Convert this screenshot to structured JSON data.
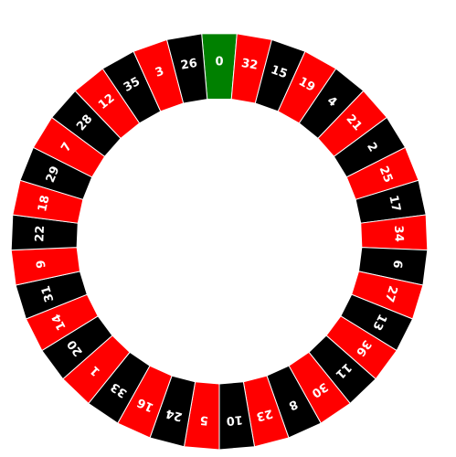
{
  "wheel": {
    "pockets": [
      {
        "number": "0",
        "color": "green"
      },
      {
        "number": "32",
        "color": "red"
      },
      {
        "number": "15",
        "color": "black"
      },
      {
        "number": "19",
        "color": "red"
      },
      {
        "number": "4",
        "color": "black"
      },
      {
        "number": "21",
        "color": "red"
      },
      {
        "number": "2",
        "color": "black"
      },
      {
        "number": "25",
        "color": "red"
      },
      {
        "number": "17",
        "color": "black"
      },
      {
        "number": "34",
        "color": "red"
      },
      {
        "number": "6",
        "color": "black"
      },
      {
        "number": "27",
        "color": "red"
      },
      {
        "number": "13",
        "color": "black"
      },
      {
        "number": "36",
        "color": "red"
      },
      {
        "number": "11",
        "color": "black"
      },
      {
        "number": "30",
        "color": "red"
      },
      {
        "number": "8",
        "color": "black"
      },
      {
        "number": "23",
        "color": "red"
      },
      {
        "number": "10",
        "color": "black"
      },
      {
        "number": "5",
        "color": "red"
      },
      {
        "number": "24",
        "color": "black"
      },
      {
        "number": "16",
        "color": "red"
      },
      {
        "number": "33",
        "color": "black"
      },
      {
        "number": "1",
        "color": "red"
      },
      {
        "number": "20",
        "color": "black"
      },
      {
        "number": "14",
        "color": "red"
      },
      {
        "number": "31",
        "color": "black"
      },
      {
        "number": "9",
        "color": "red"
      },
      {
        "number": "22",
        "color": "black"
      },
      {
        "number": "18",
        "color": "red"
      },
      {
        "number": "29",
        "color": "black"
      },
      {
        "number": "7",
        "color": "red"
      },
      {
        "number": "28",
        "color": "black"
      },
      {
        "number": "12",
        "color": "red"
      },
      {
        "number": "35",
        "color": "black"
      },
      {
        "number": "3",
        "color": "red"
      },
      {
        "number": "26",
        "color": "black"
      }
    ],
    "colors": {
      "red": "#ff0000",
      "black": "#000000",
      "green": "#008000",
      "separator": "#ffffff",
      "label": "#ffffff"
    }
  }
}
